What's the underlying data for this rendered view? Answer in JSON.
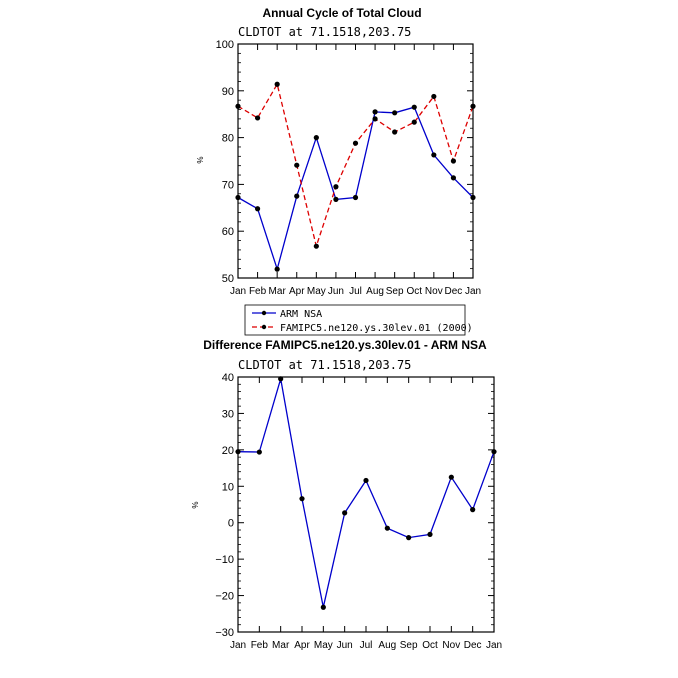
{
  "chart_data": [
    {
      "type": "line",
      "title": "Annual Cycle of Total Cloud",
      "subtitle": "CLDTOT at 71.1518,203.75",
      "ylabel": "%",
      "ylim": [
        50,
        100
      ],
      "yticks": [
        50,
        60,
        70,
        80,
        90,
        100
      ],
      "categories": [
        "Jan",
        "Feb",
        "Mar",
        "Apr",
        "May",
        "Jun",
        "Jul",
        "Aug",
        "Sep",
        "Oct",
        "Nov",
        "Dec",
        "Jan"
      ],
      "series": [
        {
          "name": "ARM NSA",
          "color": "#0000cc",
          "dash": "solid",
          "values": [
            67.2,
            64.8,
            51.9,
            67.5,
            80.0,
            66.8,
            67.2,
            85.5,
            85.3,
            86.5,
            76.3,
            71.4,
            67.2
          ]
        },
        {
          "name": "FAMIPC5.ne120.ys.30lev.01 (2000)",
          "color": "#dd0000",
          "dash": "dashed",
          "values": [
            86.7,
            84.2,
            91.4,
            74.1,
            56.8,
            69.5,
            78.8,
            84.0,
            81.2,
            83.3,
            88.8,
            75.0,
            86.7
          ]
        }
      ],
      "legend_position": "bottom"
    },
    {
      "type": "line",
      "title": "Difference FAMIPC5.ne120.ys.30lev.01 - ARM NSA",
      "subtitle": "CLDTOT at 71.1518,203.75",
      "ylabel": "%",
      "ylim": [
        -30,
        40
      ],
      "yticks": [
        -30,
        -20,
        -10,
        0,
        10,
        20,
        30,
        40
      ],
      "categories": [
        "Jan",
        "Feb",
        "Mar",
        "Apr",
        "May",
        "Jun",
        "Jul",
        "Aug",
        "Sep",
        "Oct",
        "Nov",
        "Dec",
        "Jan"
      ],
      "series": [
        {
          "color": "#0000cc",
          "dash": "solid",
          "values": [
            19.5,
            19.4,
            39.5,
            6.6,
            -23.2,
            2.7,
            11.6,
            -1.5,
            -4.1,
            -3.2,
            12.5,
            3.6,
            19.5
          ]
        }
      ]
    }
  ]
}
